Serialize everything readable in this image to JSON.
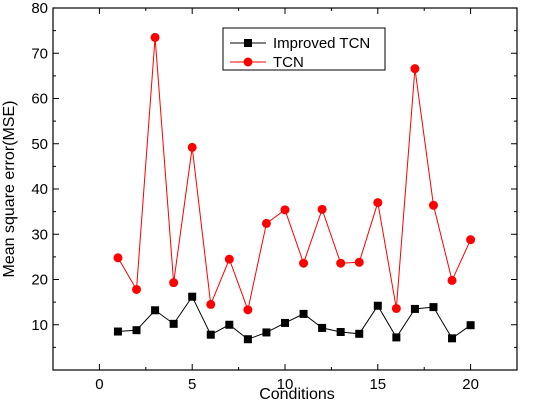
{
  "chart_data": {
    "type": "line",
    "xlabel": "Conditions",
    "ylabel": "Mean square error(MSE)",
    "xlim": [
      -2.5,
      22.5
    ],
    "ylim": [
      0,
      80
    ],
    "xticks": [
      0,
      5,
      10,
      15,
      20
    ],
    "yticks": [
      10,
      20,
      30,
      40,
      50,
      60,
      70,
      80
    ],
    "grid": false,
    "legend_position": "top-center",
    "series": [
      {
        "name": "Improved TCN",
        "color": "#000000",
        "marker": "square",
        "x": [
          1,
          2,
          3,
          4,
          5,
          6,
          7,
          8,
          9,
          10,
          11,
          12,
          13,
          14,
          15,
          16,
          17,
          18,
          19,
          20
        ],
        "values": [
          8.5,
          8.8,
          13.2,
          10.2,
          16.2,
          7.8,
          10.0,
          6.8,
          8.3,
          10.4,
          12.4,
          9.3,
          8.4,
          8.0,
          14.2,
          7.2,
          13.5,
          13.9,
          7.0,
          9.9
        ]
      },
      {
        "name": "TCN",
        "color": "#ff0000",
        "marker": "circle",
        "x": [
          1,
          2,
          3,
          4,
          5,
          6,
          7,
          8,
          9,
          10,
          11,
          12,
          13,
          14,
          15,
          16,
          17,
          18,
          19,
          20
        ],
        "values": [
          24.8,
          17.8,
          73.5,
          19.3,
          49.2,
          14.5,
          24.5,
          13.3,
          32.4,
          35.4,
          23.6,
          35.5,
          23.6,
          23.8,
          37.0,
          13.6,
          66.6,
          36.4,
          19.8,
          28.8
        ]
      }
    ]
  }
}
